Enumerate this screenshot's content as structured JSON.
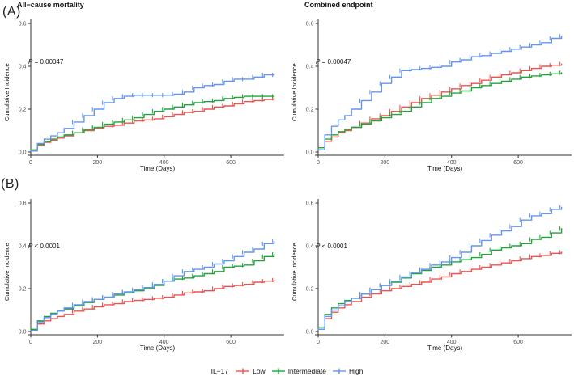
{
  "figure": {
    "panel_a_label": "(A)",
    "panel_b_label": "(B)"
  },
  "legend": {
    "title": "IL−17",
    "items": [
      {
        "label": "Low",
        "color": "#EA5450"
      },
      {
        "label": "Intermediate",
        "color": "#22A43C"
      },
      {
        "label": "High",
        "color": "#6495F0"
      }
    ]
  },
  "colors": {
    "low": "#EA5450",
    "intermediate": "#22A43C",
    "high": "#6495F0",
    "axis": "#333333",
    "tick_text": "#4d4d4d"
  },
  "chart_data": [
    {
      "type": "line",
      "title": "All−cause mortality",
      "pvalue_italic": "P",
      "pvalue_text": " = 0.00047",
      "xlabel": "Time (Days)",
      "ylabel": "Cumulative Incidence",
      "xlim": [
        0,
        760
      ],
      "ylim": [
        0,
        0.62
      ],
      "xticks": [
        0,
        200,
        400,
        600
      ],
      "yticks": [
        "0.0",
        "0.2",
        "0.4",
        "0.6"
      ],
      "legend_position": "bottom-shared",
      "grid": false,
      "x": [
        0,
        20,
        40,
        60,
        80,
        100,
        130,
        160,
        190,
        220,
        250,
        280,
        310,
        340,
        370,
        400,
        430,
        460,
        490,
        520,
        550,
        580,
        610,
        640,
        670,
        700,
        730
      ],
      "series": [
        {
          "name": "Low",
          "color": "#EA5450",
          "values": [
            0.005,
            0.03,
            0.045,
            0.055,
            0.065,
            0.075,
            0.09,
            0.1,
            0.11,
            0.12,
            0.125,
            0.135,
            0.145,
            0.15,
            0.155,
            0.165,
            0.175,
            0.185,
            0.19,
            0.2,
            0.21,
            0.215,
            0.225,
            0.235,
            0.24,
            0.245,
            0.25
          ]
        },
        {
          "name": "Intermediate",
          "color": "#22A43C",
          "values": [
            0.01,
            0.035,
            0.05,
            0.06,
            0.07,
            0.08,
            0.09,
            0.105,
            0.115,
            0.13,
            0.14,
            0.15,
            0.16,
            0.175,
            0.19,
            0.2,
            0.21,
            0.22,
            0.23,
            0.235,
            0.24,
            0.25,
            0.255,
            0.26,
            0.26,
            0.26,
            0.26
          ]
        },
        {
          "name": "High",
          "color": "#6495F0",
          "values": [
            0.005,
            0.04,
            0.06,
            0.075,
            0.09,
            0.11,
            0.14,
            0.17,
            0.2,
            0.23,
            0.25,
            0.26,
            0.265,
            0.265,
            0.265,
            0.265,
            0.27,
            0.28,
            0.3,
            0.31,
            0.315,
            0.33,
            0.34,
            0.34,
            0.35,
            0.36,
            0.36
          ]
        }
      ]
    },
    {
      "type": "line",
      "title": "Combined endpoint",
      "pvalue_italic": "P",
      "pvalue_text": " = 0.00047",
      "xlabel": "Time (Days)",
      "ylabel": "Cumulative Incidence",
      "xlim": [
        0,
        760
      ],
      "ylim": [
        0,
        0.62
      ],
      "xticks": [
        0,
        200,
        400,
        600
      ],
      "yticks": [
        "0.0",
        "0.2",
        "0.4",
        "0.6"
      ],
      "legend_position": "bottom-shared",
      "grid": false,
      "x": [
        0,
        20,
        40,
        60,
        80,
        100,
        130,
        160,
        190,
        220,
        250,
        280,
        310,
        340,
        370,
        400,
        430,
        460,
        490,
        520,
        550,
        580,
        610,
        640,
        670,
        700,
        730
      ],
      "series": [
        {
          "name": "Low",
          "color": "#EA5450",
          "values": [
            0.01,
            0.05,
            0.07,
            0.09,
            0.1,
            0.115,
            0.135,
            0.155,
            0.17,
            0.19,
            0.21,
            0.23,
            0.25,
            0.265,
            0.28,
            0.295,
            0.31,
            0.32,
            0.335,
            0.35,
            0.36,
            0.37,
            0.38,
            0.39,
            0.4,
            0.405,
            0.41
          ]
        },
        {
          "name": "Intermediate",
          "color": "#22A43C",
          "values": [
            0.02,
            0.06,
            0.08,
            0.095,
            0.105,
            0.115,
            0.13,
            0.145,
            0.16,
            0.175,
            0.19,
            0.21,
            0.23,
            0.25,
            0.26,
            0.275,
            0.285,
            0.3,
            0.31,
            0.32,
            0.33,
            0.34,
            0.35,
            0.355,
            0.36,
            0.365,
            0.37
          ]
        },
        {
          "name": "High",
          "color": "#6495F0",
          "values": [
            0.01,
            0.08,
            0.12,
            0.15,
            0.17,
            0.2,
            0.24,
            0.28,
            0.32,
            0.35,
            0.38,
            0.385,
            0.39,
            0.395,
            0.4,
            0.42,
            0.43,
            0.445,
            0.45,
            0.46,
            0.47,
            0.48,
            0.49,
            0.5,
            0.51,
            0.53,
            0.54
          ]
        }
      ]
    },
    {
      "type": "line",
      "title": "",
      "pvalue_italic": "P",
      "pvalue_text": " < 0.0001",
      "xlabel": "Time (Days)",
      "ylabel": "Cumulative Incidence",
      "xlim": [
        0,
        760
      ],
      "ylim": [
        0,
        0.62
      ],
      "xticks": [
        0,
        200,
        400,
        600
      ],
      "yticks": [
        "0.0",
        "0.2",
        "0.4",
        "0.6"
      ],
      "legend_position": "bottom-shared",
      "grid": false,
      "x": [
        0,
        20,
        40,
        60,
        80,
        100,
        130,
        160,
        190,
        220,
        250,
        280,
        310,
        340,
        370,
        400,
        430,
        460,
        490,
        520,
        550,
        580,
        610,
        640,
        670,
        700,
        730
      ],
      "series": [
        {
          "name": "Low",
          "color": "#EA5450",
          "values": [
            0.005,
            0.035,
            0.05,
            0.06,
            0.07,
            0.08,
            0.095,
            0.105,
            0.115,
            0.125,
            0.13,
            0.14,
            0.145,
            0.15,
            0.155,
            0.16,
            0.17,
            0.18,
            0.185,
            0.19,
            0.2,
            0.21,
            0.215,
            0.22,
            0.23,
            0.235,
            0.24
          ]
        },
        {
          "name": "Intermediate",
          "color": "#22A43C",
          "values": [
            0.01,
            0.05,
            0.07,
            0.085,
            0.095,
            0.105,
            0.12,
            0.135,
            0.15,
            0.16,
            0.17,
            0.18,
            0.19,
            0.2,
            0.215,
            0.235,
            0.245,
            0.25,
            0.26,
            0.27,
            0.28,
            0.3,
            0.305,
            0.31,
            0.33,
            0.35,
            0.36
          ]
        },
        {
          "name": "High",
          "color": "#6495F0",
          "values": [
            0.005,
            0.045,
            0.065,
            0.08,
            0.095,
            0.11,
            0.125,
            0.14,
            0.15,
            0.16,
            0.175,
            0.185,
            0.195,
            0.205,
            0.22,
            0.235,
            0.26,
            0.28,
            0.29,
            0.3,
            0.315,
            0.33,
            0.35,
            0.37,
            0.385,
            0.41,
            0.42
          ]
        }
      ]
    },
    {
      "type": "line",
      "title": "",
      "pvalue_italic": "P",
      "pvalue_text": " < 0.0001",
      "xlabel": "Time (Days)",
      "ylabel": "Cumulative Incidence",
      "xlim": [
        0,
        760
      ],
      "ylim": [
        0,
        0.62
      ],
      "xticks": [
        0,
        200,
        400,
        600
      ],
      "yticks": [
        "0.0",
        "0.2",
        "0.4",
        "0.6"
      ],
      "legend_position": "bottom-shared",
      "grid": false,
      "x": [
        0,
        20,
        40,
        60,
        80,
        100,
        130,
        160,
        190,
        220,
        250,
        280,
        310,
        340,
        370,
        400,
        430,
        460,
        490,
        520,
        550,
        580,
        610,
        640,
        670,
        700,
        730
      ],
      "series": [
        {
          "name": "Low",
          "color": "#EA5450",
          "values": [
            0.01,
            0.06,
            0.09,
            0.11,
            0.125,
            0.14,
            0.16,
            0.175,
            0.19,
            0.2,
            0.21,
            0.22,
            0.23,
            0.245,
            0.255,
            0.27,
            0.28,
            0.29,
            0.3,
            0.31,
            0.32,
            0.33,
            0.34,
            0.35,
            0.355,
            0.365,
            0.37
          ]
        },
        {
          "name": "Intermediate",
          "color": "#22A43C",
          "values": [
            0.02,
            0.08,
            0.11,
            0.13,
            0.145,
            0.155,
            0.175,
            0.195,
            0.215,
            0.23,
            0.25,
            0.27,
            0.285,
            0.3,
            0.31,
            0.325,
            0.335,
            0.345,
            0.36,
            0.38,
            0.39,
            0.4,
            0.41,
            0.43,
            0.44,
            0.46,
            0.48
          ]
        },
        {
          "name": "High",
          "color": "#6495F0",
          "values": [
            0.01,
            0.07,
            0.1,
            0.12,
            0.14,
            0.155,
            0.175,
            0.195,
            0.215,
            0.235,
            0.255,
            0.275,
            0.29,
            0.31,
            0.325,
            0.345,
            0.37,
            0.4,
            0.425,
            0.45,
            0.47,
            0.49,
            0.52,
            0.54,
            0.55,
            0.57,
            0.58
          ]
        }
      ]
    }
  ]
}
